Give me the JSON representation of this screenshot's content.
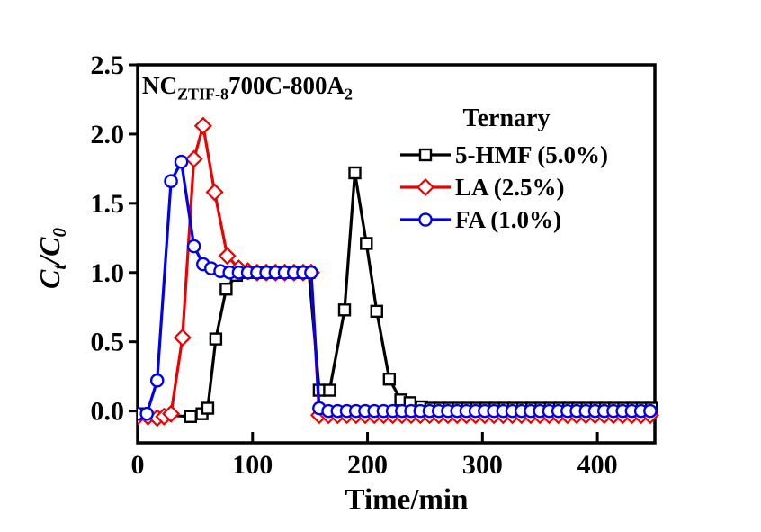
{
  "figure": {
    "annotation": {
      "prefix": "NC",
      "prefix_sub": "ZTIF-8",
      "main": "700C-800A",
      "main_sub": "2"
    },
    "y_axis_title": {
      "c1": "C",
      "sub1": "t",
      "slash": "/",
      "c2": "C",
      "sub2": "0"
    },
    "x_axis_title": "Time/min",
    "legend": {
      "title": "Ternary",
      "entries": [
        {
          "label": "5-HMF (5.0%)"
        },
        {
          "label": "LA (2.5%)"
        },
        {
          "label": "FA (1.0%)"
        }
      ]
    }
  },
  "chart_data": {
    "type": "line",
    "title": "NC(ZTIF-8)700C-800A2",
    "xlabel": "Time/min",
    "ylabel": "Ct/C0",
    "legend_title": "Ternary",
    "legend_position": "upper-right-inside",
    "grid": false,
    "axis_color": "#000000",
    "layout": {
      "x_min": 0,
      "x_max": 450,
      "y_min": -0.23,
      "y_max": 2.5,
      "x_ticks": [
        0,
        100,
        200,
        300,
        400
      ],
      "x_tick_labels": [
        "0",
        "100",
        "200",
        "300",
        "400"
      ],
      "y_ticks": [
        0,
        0.5,
        1,
        1.5,
        2,
        2.5
      ],
      "y_tick_labels": [
        "0.0",
        "0.5",
        "1.0",
        "1.5",
        "2.0",
        "2.5"
      ]
    },
    "series": [
      {
        "id": "hmf",
        "name": "5-HMF (5.0%)",
        "color": "#000000",
        "marker": "square",
        "points": [
          [
            0,
            -0.02
          ],
          [
            46,
            -0.04
          ],
          [
            56,
            -0.02
          ],
          [
            61,
            0.02
          ],
          [
            68,
            0.52
          ],
          [
            77,
            0.88
          ],
          [
            86,
            0.98
          ],
          [
            94,
            1
          ],
          [
            102,
            1
          ],
          [
            110,
            1
          ],
          [
            118,
            1
          ],
          [
            126,
            1
          ],
          [
            134,
            1
          ],
          [
            142,
            1
          ],
          [
            149,
            1
          ],
          [
            158,
            0.15
          ],
          [
            167,
            0.15
          ],
          [
            180,
            0.73
          ],
          [
            189,
            1.72
          ],
          [
            199,
            1.21
          ],
          [
            208,
            0.72
          ],
          [
            219,
            0.23
          ],
          [
            229,
            0.08
          ],
          [
            237,
            0.06
          ],
          [
            247,
            0.03
          ],
          [
            255,
            0.02
          ],
          [
            263,
            0.02
          ],
          [
            271,
            0.02
          ],
          [
            279,
            0.02
          ],
          [
            287,
            0.02
          ],
          [
            295,
            0.02
          ],
          [
            303,
            0.02
          ],
          [
            311,
            0.02
          ],
          [
            319,
            0.02
          ],
          [
            327,
            0.02
          ],
          [
            335,
            0.02
          ],
          [
            343,
            0.02
          ],
          [
            351,
            0.02
          ],
          [
            359,
            0.02
          ],
          [
            367,
            0.02
          ],
          [
            375,
            0.02
          ],
          [
            383,
            0.02
          ],
          [
            391,
            0.02
          ],
          [
            399,
            0.02
          ],
          [
            407,
            0.02
          ],
          [
            415,
            0.02
          ],
          [
            423,
            0.02
          ],
          [
            431,
            0.02
          ],
          [
            439,
            0.02
          ],
          [
            447,
            0.02
          ]
        ]
      },
      {
        "id": "la",
        "name": "LA (2.5%)",
        "color": "#ee0000",
        "marker": "diamond",
        "points": [
          [
            0,
            -0.04
          ],
          [
            9,
            -0.04
          ],
          [
            17,
            -0.05
          ],
          [
            23,
            -0.04
          ],
          [
            29,
            -0.02
          ],
          [
            39,
            0.53
          ],
          [
            49,
            1.82
          ],
          [
            57,
            2.06
          ],
          [
            67,
            1.58
          ],
          [
            78,
            1.12
          ],
          [
            88,
            1.03
          ],
          [
            96,
            1.01
          ],
          [
            104,
            1
          ],
          [
            112,
            1
          ],
          [
            120,
            1
          ],
          [
            128,
            1
          ],
          [
            136,
            1
          ],
          [
            144,
            1
          ],
          [
            151,
            1
          ],
          [
            158,
            -0.03
          ],
          [
            166,
            -0.03
          ],
          [
            174,
            -0.03
          ],
          [
            182,
            -0.03
          ],
          [
            190,
            -0.03
          ],
          [
            198,
            -0.03
          ],
          [
            206,
            -0.03
          ],
          [
            214,
            -0.03
          ],
          [
            222,
            -0.03
          ],
          [
            230,
            -0.03
          ],
          [
            238,
            -0.03
          ],
          [
            246,
            -0.03
          ],
          [
            254,
            -0.03
          ],
          [
            262,
            -0.03
          ],
          [
            270,
            -0.03
          ],
          [
            278,
            -0.03
          ],
          [
            286,
            -0.03
          ],
          [
            294,
            -0.03
          ],
          [
            302,
            -0.03
          ],
          [
            310,
            -0.03
          ],
          [
            318,
            -0.03
          ],
          [
            326,
            -0.03
          ],
          [
            334,
            -0.03
          ],
          [
            342,
            -0.03
          ],
          [
            350,
            -0.03
          ],
          [
            358,
            -0.03
          ],
          [
            366,
            -0.03
          ],
          [
            374,
            -0.03
          ],
          [
            382,
            -0.03
          ],
          [
            390,
            -0.03
          ],
          [
            398,
            -0.03
          ],
          [
            406,
            -0.03
          ],
          [
            414,
            -0.03
          ],
          [
            422,
            -0.03
          ],
          [
            430,
            -0.03
          ],
          [
            438,
            -0.03
          ],
          [
            446,
            -0.03
          ]
        ]
      },
      {
        "id": "fa",
        "name": "FA (1.0%)",
        "color": "#0000ee",
        "marker": "circle",
        "points": [
          [
            0,
            -0.02
          ],
          [
            8,
            -0.02
          ],
          [
            17,
            0.22
          ],
          [
            29,
            1.66
          ],
          [
            38,
            1.8
          ],
          [
            49,
            1.19
          ],
          [
            57,
            1.06
          ],
          [
            64,
            1.03
          ],
          [
            72,
            1.01
          ],
          [
            80,
            1
          ],
          [
            88,
            1
          ],
          [
            96,
            1
          ],
          [
            104,
            1
          ],
          [
            112,
            1
          ],
          [
            120,
            1
          ],
          [
            128,
            1
          ],
          [
            136,
            1
          ],
          [
            144,
            1
          ],
          [
            151,
            1
          ],
          [
            158,
            0.02
          ],
          [
            166,
            0
          ],
          [
            174,
            0
          ],
          [
            182,
            0
          ],
          [
            190,
            0
          ],
          [
            198,
            0
          ],
          [
            206,
            0
          ],
          [
            214,
            0
          ],
          [
            222,
            0
          ],
          [
            230,
            0
          ],
          [
            238,
            0
          ],
          [
            246,
            0
          ],
          [
            254,
            0
          ],
          [
            262,
            0
          ],
          [
            270,
            0
          ],
          [
            278,
            0
          ],
          [
            286,
            0
          ],
          [
            294,
            0
          ],
          [
            302,
            0
          ],
          [
            310,
            0
          ],
          [
            318,
            0
          ],
          [
            326,
            0
          ],
          [
            334,
            0
          ],
          [
            342,
            0
          ],
          [
            350,
            0
          ],
          [
            358,
            0
          ],
          [
            366,
            0
          ],
          [
            374,
            0
          ],
          [
            382,
            0
          ],
          [
            390,
            0
          ],
          [
            398,
            0
          ],
          [
            406,
            0
          ],
          [
            414,
            0
          ],
          [
            422,
            0
          ],
          [
            430,
            0
          ],
          [
            438,
            0
          ],
          [
            446,
            0
          ]
        ]
      }
    ]
  }
}
